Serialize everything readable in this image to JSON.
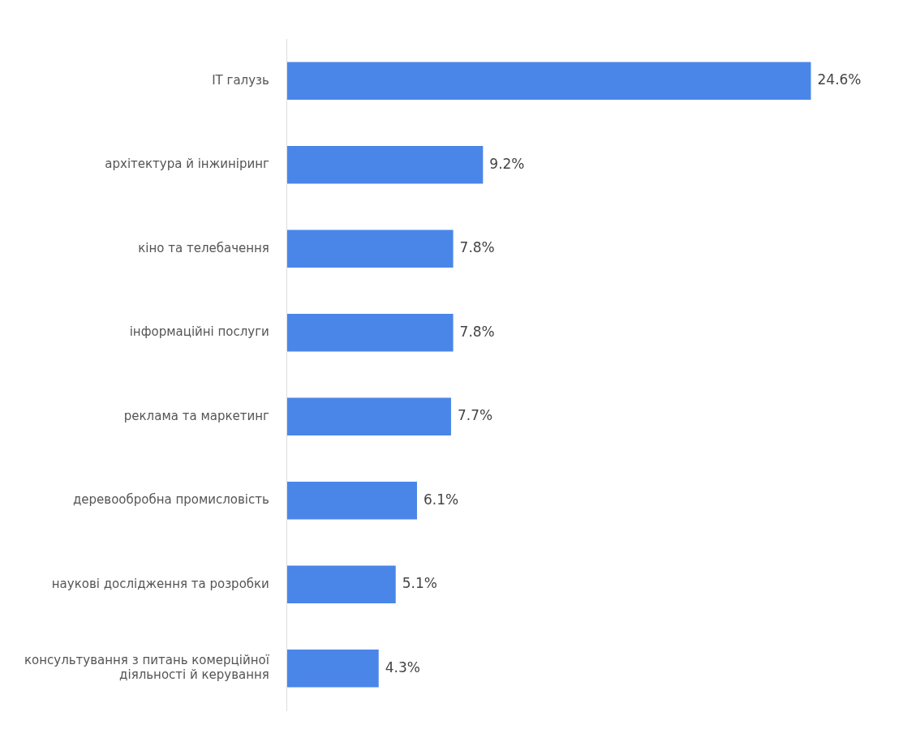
{
  "chart_data": {
    "type": "bar",
    "orientation": "horizontal",
    "categories": [
      "IT галузь",
      "архітектура й інжиніринг",
      "кіно та телебачення",
      "інформаційні послуги",
      "реклама та маркетинг",
      "деревообробна промисловість",
      "наукові дослідження та розробки",
      "консультування з питань комерційної діяльності й керування"
    ],
    "values": [
      24.6,
      9.2,
      7.8,
      7.8,
      7.7,
      6.1,
      5.1,
      4.3
    ],
    "value_labels": [
      "24.6%",
      "9.2%",
      "7.8%",
      "7.8%",
      "7.7%",
      "6.1%",
      "5.1%",
      "4.3%"
    ],
    "color": "#4a86e8"
  }
}
